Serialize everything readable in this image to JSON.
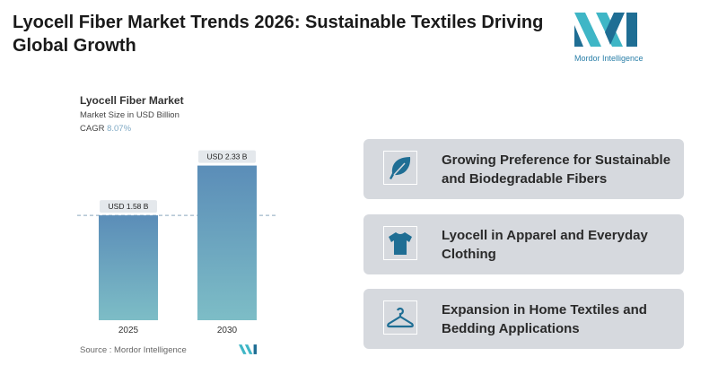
{
  "title": "Lyocell Fiber Market Trends 2026: Sustainable Textiles Driving Global Growth",
  "logo": {
    "text": "Mordor Intelligence"
  },
  "chart_data": {
    "type": "bar",
    "title": "Lyocell Fiber Market",
    "subtitle": "Market Size in USD Billion",
    "cagr_label": "CAGR",
    "cagr_value": "8.07%",
    "categories": [
      "2025",
      "2030"
    ],
    "values": [
      1.58,
      2.33
    ],
    "data_labels": [
      "USD 1.58 B",
      "USD 2.33 B"
    ],
    "ylim": [
      0,
      2.6
    ],
    "grid": false,
    "source": "Source : Mordor Intelligence",
    "colors": {
      "bar_top": "#5b8db8",
      "bar_bottom": "#7dbdc6"
    }
  },
  "cards": [
    {
      "icon": "leaf-icon",
      "text": "Growing Preference for Sustainable and Biodegradable Fibers"
    },
    {
      "icon": "tshirt-icon",
      "text": "Lyocell in Apparel and Everyday Clothing"
    },
    {
      "icon": "hanger-icon",
      "text": "Expansion in Home Textiles and Bedding Applications"
    }
  ],
  "colors": {
    "icon": "#1f6e94",
    "card_bg": "#d6d9de"
  }
}
